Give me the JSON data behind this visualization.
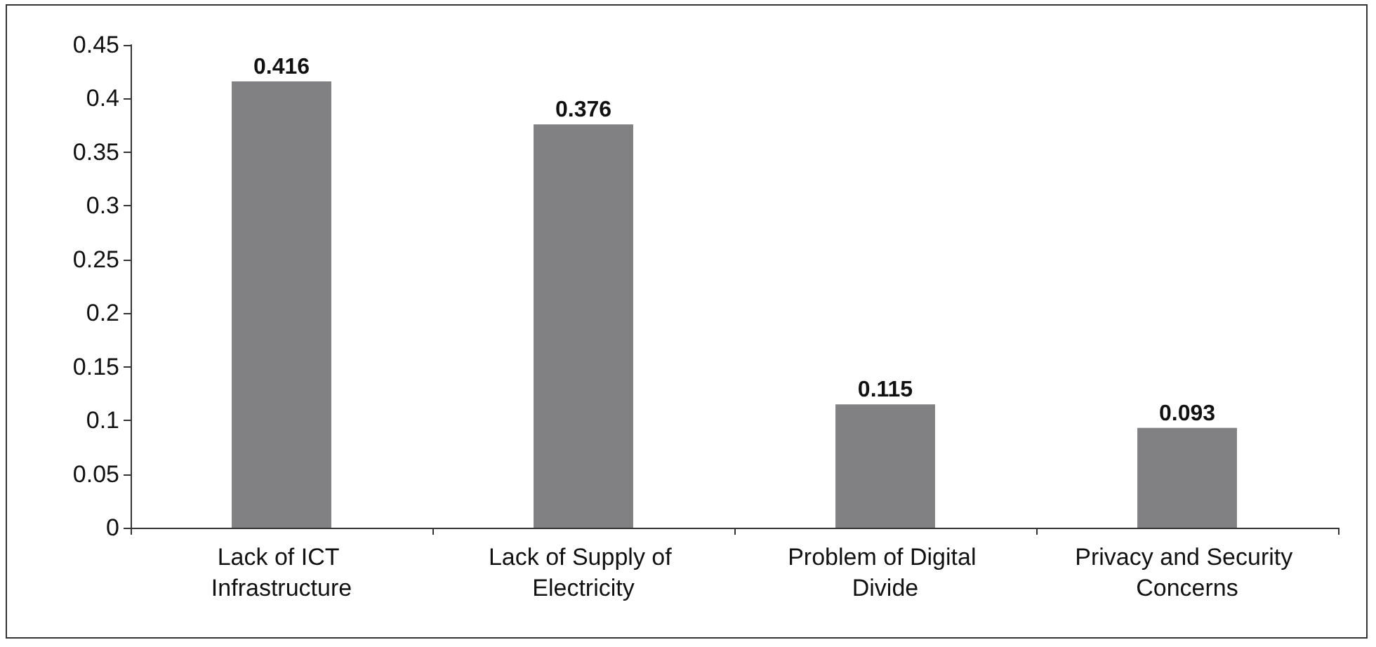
{
  "chart_data": {
    "type": "bar",
    "categories": [
      "Lack of ICT Infrastructure",
      "Lack of Supply of Electricity",
      "Problem of Digital Divide",
      "Privacy and Security Concerns"
    ],
    "values": [
      0.416,
      0.376,
      0.115,
      0.093
    ],
    "color": "#818184",
    "ylim": [
      0,
      0.45
    ],
    "yticks": [
      0,
      0.05,
      0.1,
      0.15,
      0.2,
      0.25,
      0.3,
      0.35,
      0.4,
      0.45
    ],
    "grid": false,
    "data_labels": true
  }
}
